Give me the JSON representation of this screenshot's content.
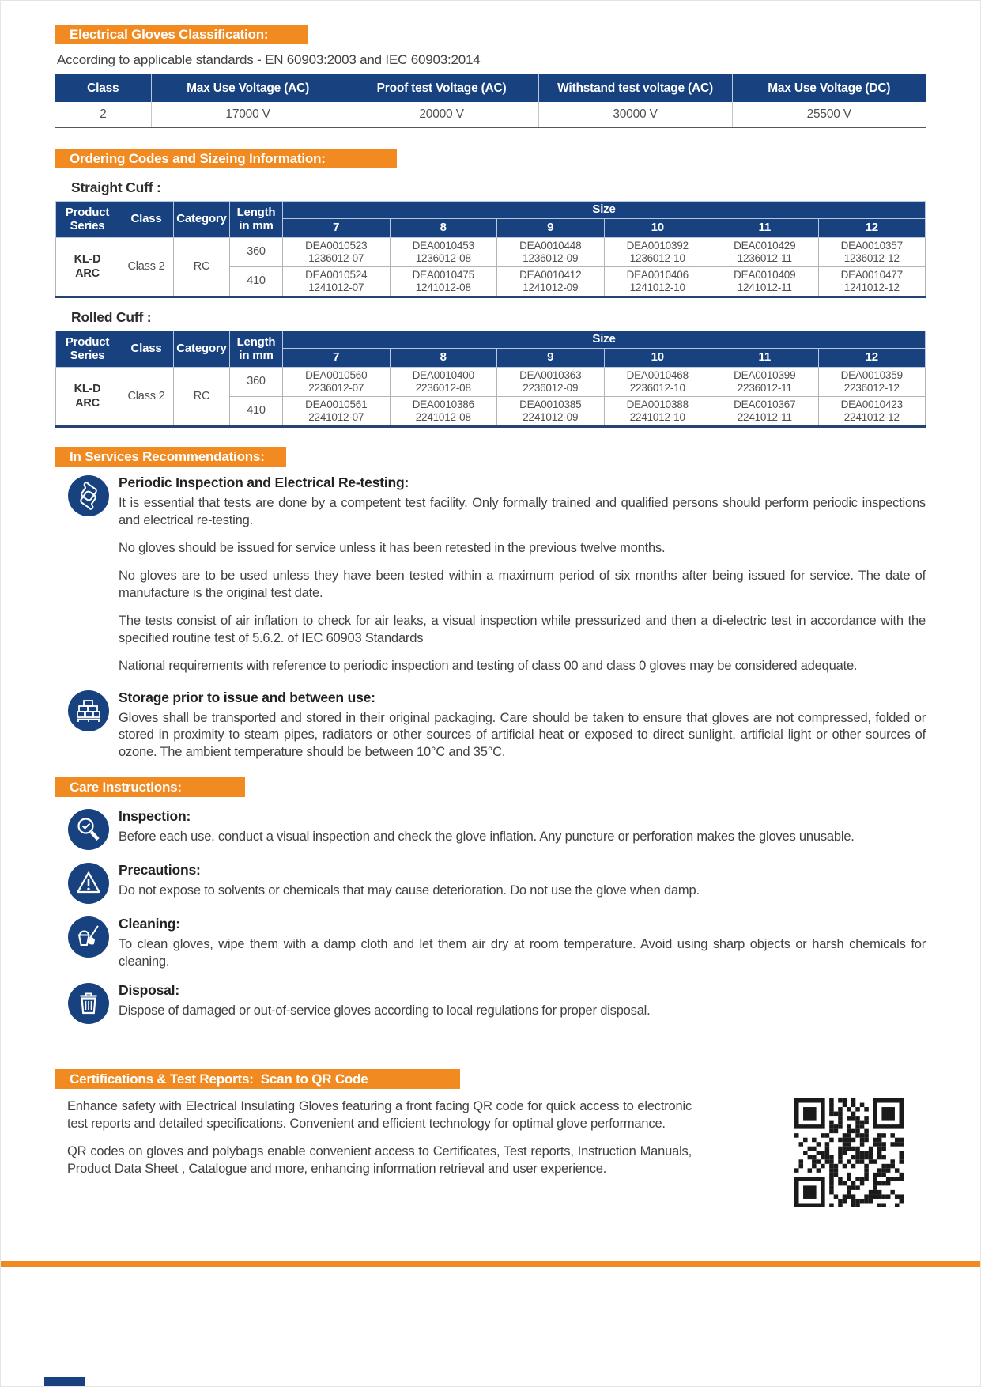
{
  "colors": {
    "accent_orange": "#F08A21",
    "navy": "#17417F"
  },
  "classification": {
    "banner": "Electrical Gloves Classification:",
    "standards_line": "According to applicable standards - EN 60903:2003 and IEC 60903:2014",
    "table": {
      "headers": [
        "Class",
        "Max Use Voltage (AC)",
        "Proof test Voltage (AC)",
        "Withstand test voltage (AC)",
        "Max Use Voltage (DC)"
      ],
      "row": [
        "2",
        "17000 V",
        "20000 V",
        "30000 V",
        "25500 V"
      ]
    }
  },
  "ordering": {
    "banner": "Ordering Codes and Sizeing Information:",
    "size_label": "Size",
    "col_headers": {
      "product_series": "Product\nSeries",
      "class": "Class",
      "category": "Category",
      "length": "Length\nin mm"
    },
    "sizes": [
      "7",
      "8",
      "9",
      "10",
      "11",
      "12"
    ],
    "straight": {
      "title": "Straight Cuff :",
      "product_series": "KL-D\nARC",
      "class": "Class 2",
      "category": "RC",
      "rows": [
        {
          "length": "360",
          "cells": [
            "DEA0010523\n1236012-07",
            "DEA0010453\n1236012-08",
            "DEA0010448\n1236012-09",
            "DEA0010392\n1236012-10",
            "DEA0010429\n1236012-11",
            "DEA0010357\n1236012-12"
          ]
        },
        {
          "length": "410",
          "cells": [
            "DEA0010524\n1241012-07",
            "DEA0010475\n1241012-08",
            "DEA0010412\n1241012-09",
            "DEA0010406\n1241012-10",
            "DEA0010409\n1241012-11",
            "DEA0010477\n1241012-12"
          ]
        }
      ]
    },
    "rolled": {
      "title": "Rolled Cuff :",
      "product_series": "KL-D\nARC",
      "class": "Class 2",
      "category": "RC",
      "rows": [
        {
          "length": "360",
          "cells": [
            "DEA0010560\n2236012-07",
            "DEA0010400\n2236012-08",
            "DEA0010363\n2236012-09",
            "DEA0010468\n2236012-10",
            "DEA0010399\n2236012-11",
            "DEA0010359\n2236012-12"
          ]
        },
        {
          "length": "410",
          "cells": [
            "DEA0010561\n2241012-07",
            "DEA0010386\n2241012-08",
            "DEA0010385\n2241012-09",
            "DEA0010388\n2241012-10",
            "DEA0010367\n2241012-11",
            "DEA0010423\n2241012-12"
          ]
        }
      ]
    }
  },
  "recommendations": {
    "banner": "In Services Recommendations:",
    "periodic": {
      "icon": "gloves-icon",
      "title": "Periodic Inspection and Electrical Re-testing:",
      "paragraphs": [
        "It is essential that tests are done by a competent test facility. Only formally trained and qualified persons should perform periodic inspections and electrical re-testing.",
        "No gloves should be issued for service unless it has been retested in the previous twelve months.",
        "No gloves are to be used unless they have been tested within a maximum period of six months after being issued for service. The date of manufacture is the original test date.",
        "The tests consist of air inflation to check for air leaks, a visual inspection while pressurized and then a di-electric test in accordance with the specified routine test of 5.6.2. of IEC 60903 Standards",
        "National requirements with reference to periodic inspection and testing of class 00 and class 0 gloves may be considered adequate."
      ]
    },
    "storage": {
      "icon": "storage-boxes-icon",
      "title": "Storage prior to issue and between use:",
      "paragraph": "Gloves shall be transported and stored in their original packaging. Care should be taken to ensure that gloves are not compressed, folded or stored in proximity to steam pipes, radiators or other sources of artificial heat or exposed to direct sunlight, artificial light or other sources of ozone. The ambient temperature should be between 10°C and 35°C."
    }
  },
  "care": {
    "banner": "Care Instructions:",
    "items": [
      {
        "icon": "magnifier-check-icon",
        "title": "Inspection:",
        "text": "Before each use, conduct a visual inspection and check the glove inflation. Any puncture or perforation makes the gloves unusable."
      },
      {
        "icon": "warning-triangle-icon",
        "title": "Precautions:",
        "text": "Do not expose to solvents or chemicals that may cause deterioration. Do not use the glove when damp."
      },
      {
        "icon": "cleaning-bucket-icon",
        "title": "Cleaning:",
        "text": "To clean gloves, wipe them with a damp cloth and let them air dry at room temperature. Avoid using sharp objects or harsh chemicals for cleaning."
      },
      {
        "icon": "trash-bin-icon",
        "title": "Disposal:",
        "text": "Dispose of damaged or out-of-service gloves according to local regulations for proper disposal."
      }
    ]
  },
  "certifications": {
    "banner": "Certifications & Test Reports:  Scan to QR Code",
    "paragraphs": [
      "Enhance safety with Electrical Insulating Gloves featuring a front facing QR code for quick access to electronic test reports and detailed specifications. Convenient and efficient technology for optimal glove performance.",
      "QR codes on gloves and polybags enable convenient access to Certificates, Test reports, Instruction Manuals, Product Data Sheet , Catalogue and more, enhancing information retrieval and user experience."
    ],
    "qr_icon": "qr-code"
  }
}
